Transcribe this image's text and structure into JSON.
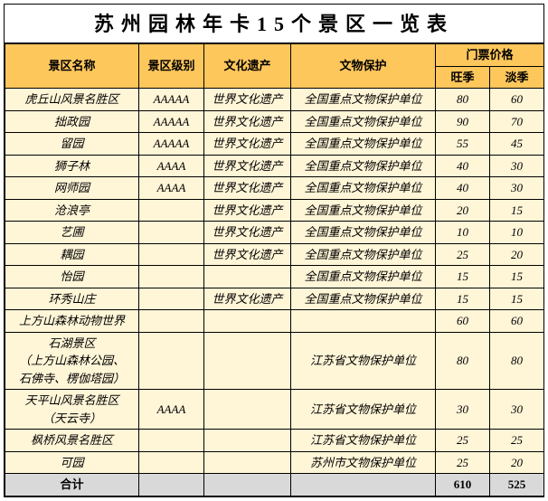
{
  "title": "苏州园林年卡15个景区一览表",
  "colors": {
    "header_bg": "#fec75c",
    "row_bg": "#fff5d7",
    "total_bg": "#d9d9d9",
    "border": "#000000"
  },
  "columns": {
    "name": "景区名称",
    "level": "景区级别",
    "heritage": "文化遗产",
    "protection": "文物保护",
    "price_group": "门票价格",
    "peak": "旺季",
    "off": "淡季"
  },
  "rows": [
    {
      "name": "虎丘山风景名胜区",
      "level": "AAAAA",
      "heritage": "世界文化遗产",
      "protection": "全国重点文物保护单位",
      "peak": "80",
      "off": "60"
    },
    {
      "name": "拙政园",
      "level": "AAAAA",
      "heritage": "世界文化遗产",
      "protection": "全国重点文物保护单位",
      "peak": "90",
      "off": "70"
    },
    {
      "name": "留园",
      "level": "AAAAA",
      "heritage": "世界文化遗产",
      "protection": "全国重点文物保护单位",
      "peak": "55",
      "off": "45"
    },
    {
      "name": "狮子林",
      "level": "AAAA",
      "heritage": "世界文化遗产",
      "protection": "全国重点文物保护单位",
      "peak": "40",
      "off": "30"
    },
    {
      "name": "网师园",
      "level": "AAAA",
      "heritage": "世界文化遗产",
      "protection": "全国重点文物保护单位",
      "peak": "40",
      "off": "30"
    },
    {
      "name": "沧浪亭",
      "level": "",
      "heritage": "世界文化遗产",
      "protection": "全国重点文物保护单位",
      "peak": "20",
      "off": "15"
    },
    {
      "name": "艺圃",
      "level": "",
      "heritage": "世界文化遗产",
      "protection": "全国重点文物保护单位",
      "peak": "10",
      "off": "10"
    },
    {
      "name": "耦园",
      "level": "",
      "heritage": "世界文化遗产",
      "protection": "全国重点文物保护单位",
      "peak": "25",
      "off": "20"
    },
    {
      "name": "怡园",
      "level": "",
      "heritage": "",
      "protection": "全国重点文物保护单位",
      "peak": "15",
      "off": "15"
    },
    {
      "name": "环秀山庄",
      "level": "",
      "heritage": "世界文化遗产",
      "protection": "全国重点文物保护单位",
      "peak": "15",
      "off": "15"
    },
    {
      "name": "上方山森林动物世界",
      "level": "",
      "heritage": "",
      "protection": "",
      "peak": "60",
      "off": "60"
    },
    {
      "name": "石湖景区\n（上方山森林公园、\n石佛寺、楞伽塔园）",
      "level": "",
      "heritage": "",
      "protection": "江苏省文物保护单位",
      "peak": "80",
      "off": "80"
    },
    {
      "name": "天平山风景名胜区\n（天云寺）",
      "level": "AAAA",
      "heritage": "",
      "protection": "江苏省文物保护单位",
      "peak": "30",
      "off": "30"
    },
    {
      "name": "枫桥风景名胜区",
      "level": "",
      "heritage": "",
      "protection": "江苏省文物保护单位",
      "peak": "25",
      "off": "25"
    },
    {
      "name": "可园",
      "level": "",
      "heritage": "",
      "protection": "苏州市文物保护单位",
      "peak": "25",
      "off": "20"
    }
  ],
  "total": {
    "label": "合计",
    "peak": "610",
    "off": "525"
  }
}
